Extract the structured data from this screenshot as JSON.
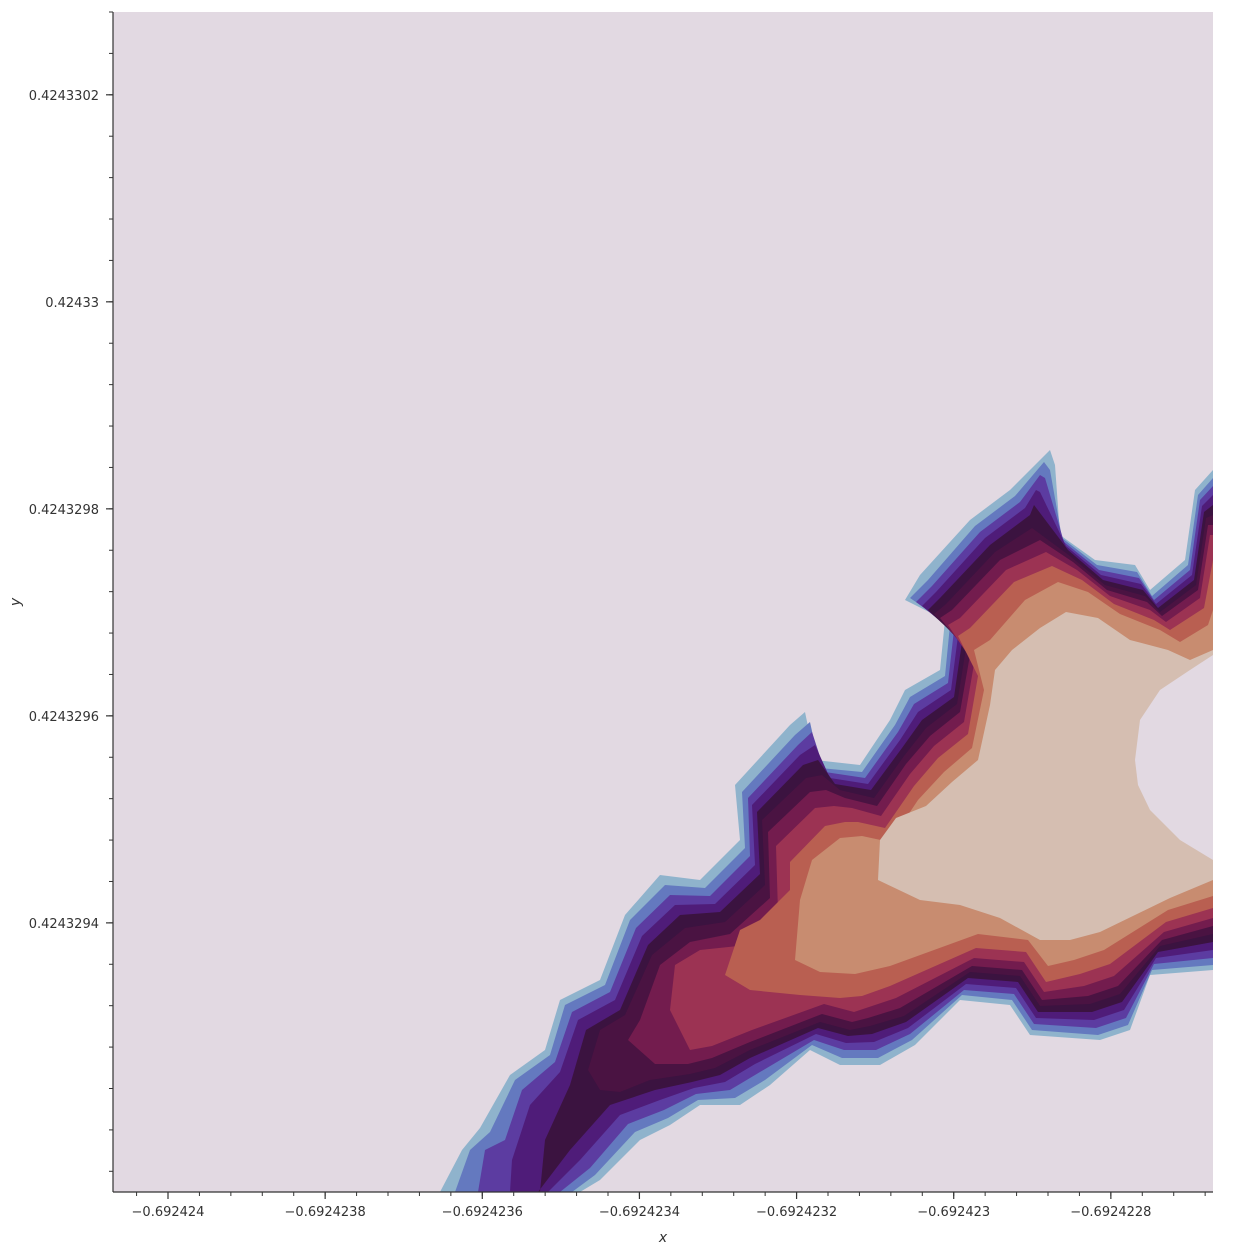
{
  "chart_data": {
    "type": "heatmap",
    "title": "",
    "xlabel": "x",
    "ylabel": "y",
    "xlim": [
      -0.69242407,
      -0.69242267
    ],
    "ylim": [
      0.42432914,
      0.42433028
    ],
    "x_ticks": [
      {
        "value": -0.692424,
        "label": "−0.692424"
      },
      {
        "value": -0.6924238,
        "label": "−0.6924238"
      },
      {
        "value": -0.6924236,
        "label": "−0.6924236"
      },
      {
        "value": -0.6924234,
        "label": "−0.6924234"
      },
      {
        "value": -0.6924232,
        "label": "−0.6924232"
      },
      {
        "value": -0.692423,
        "label": "−0.692423"
      },
      {
        "value": -0.6924228,
        "label": "−0.6924228"
      }
    ],
    "y_ticks": [
      {
        "value": 0.4243294,
        "label": "0.4243294"
      },
      {
        "value": 0.4243296,
        "label": "0.4243296"
      },
      {
        "value": 0.4243298,
        "label": "0.4243298"
      },
      {
        "value": 0.42433,
        "label": "0.42433"
      },
      {
        "value": 0.4243302,
        "label": "0.4243302"
      }
    ],
    "x_minor_step": 4e-08,
    "y_minor_step": 4e-08,
    "grid": false,
    "colormap": "twilight",
    "background_color": "#e2d9e2",
    "level_colors": [
      "#7ea6c4",
      "#5f73bd",
      "#5a3aa0",
      "#4e1b78",
      "#3a1242",
      "#4b1342",
      "#721b4d",
      "#9b3252",
      "#b85e50",
      "#c78b6f",
      "#d4bdb0",
      "#e2d9e2"
    ],
    "description_levels_from_edge_to_core": 12
  }
}
